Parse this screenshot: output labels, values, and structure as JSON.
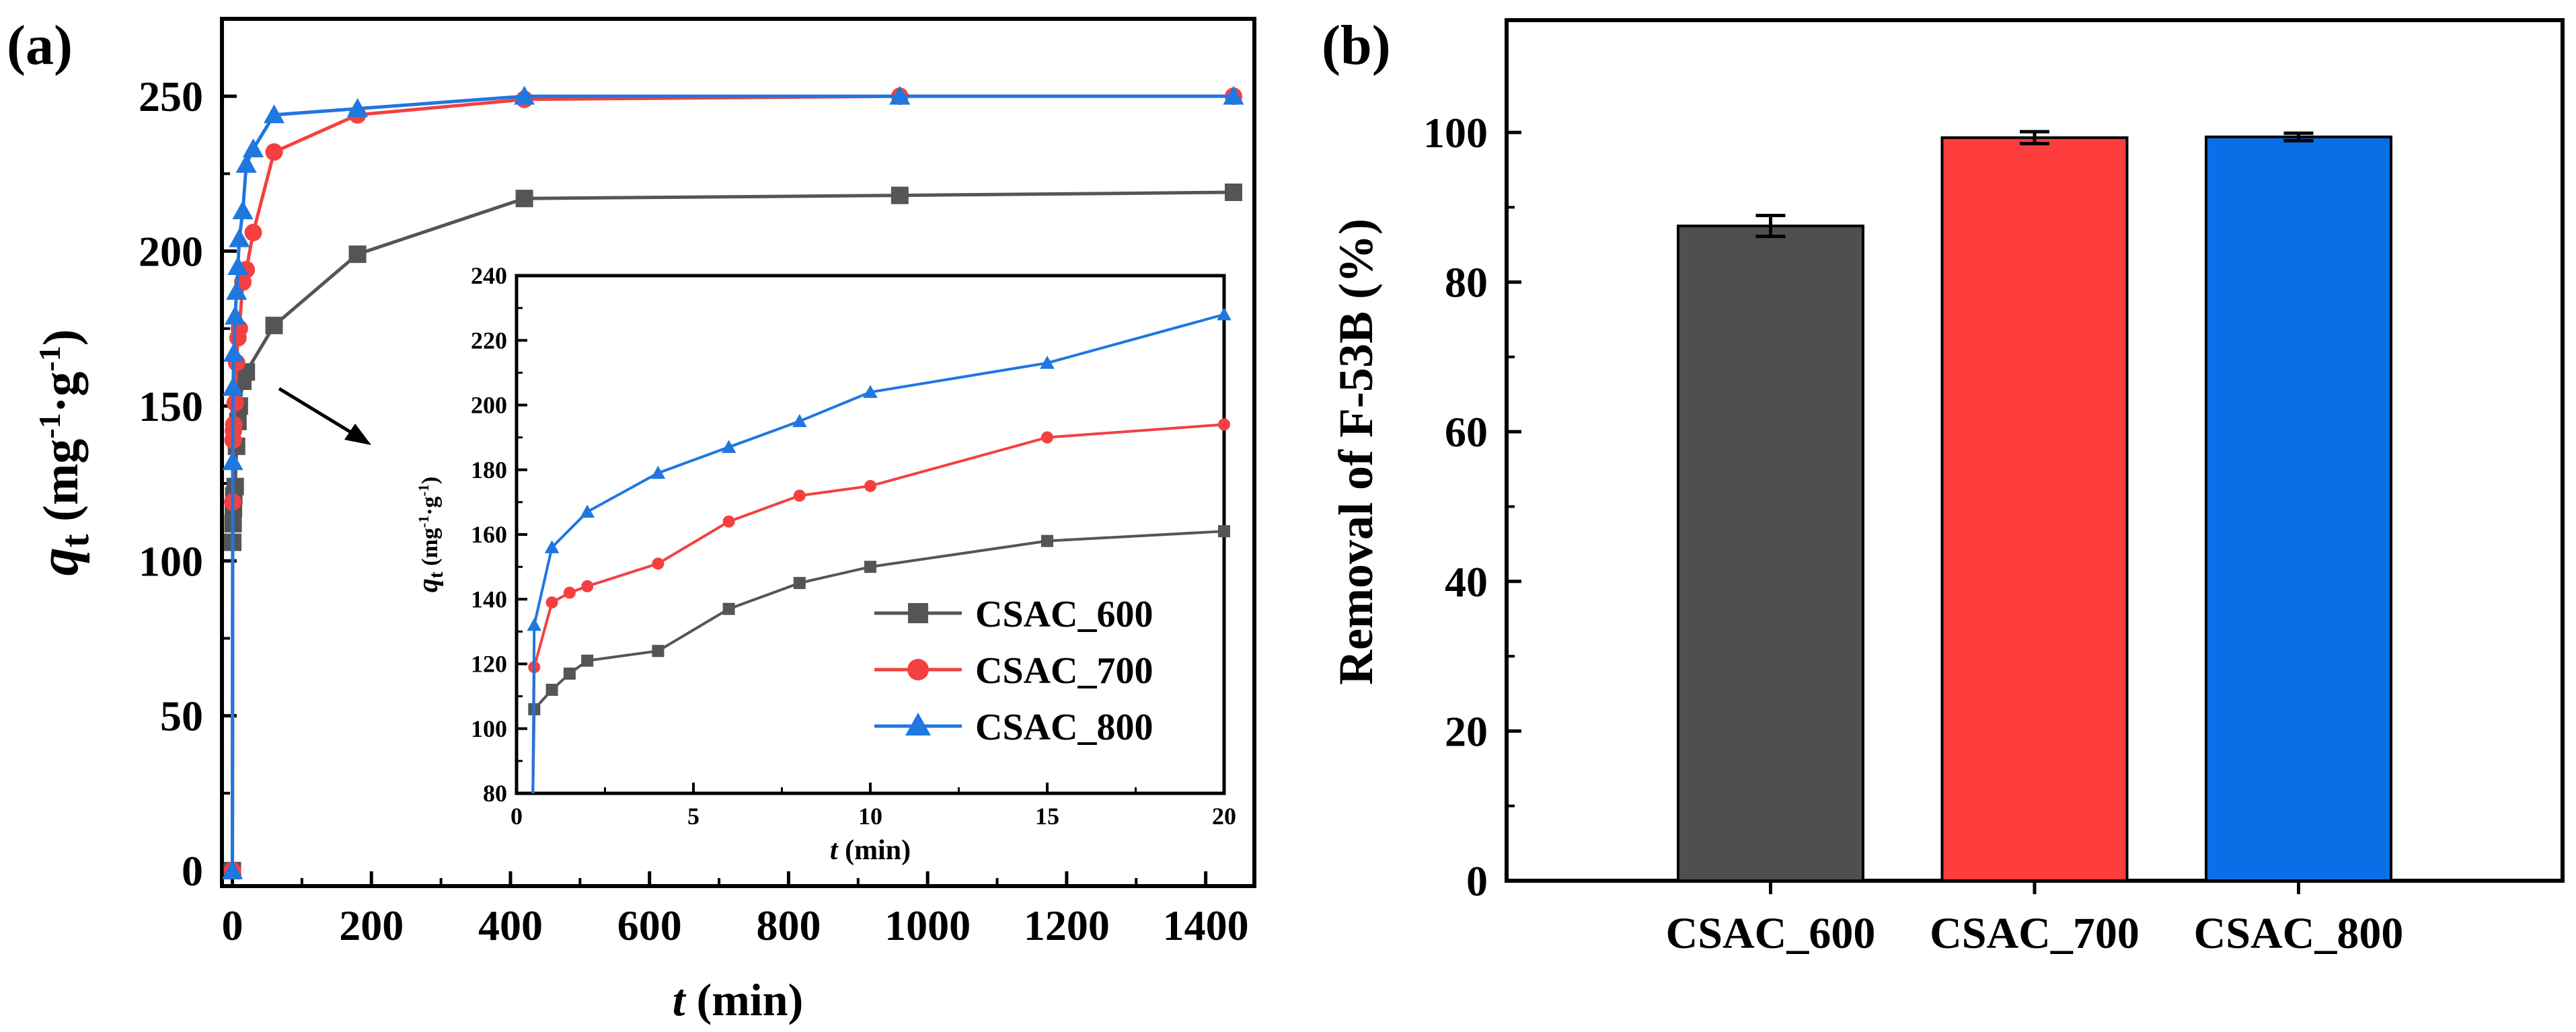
{
  "chart_data": [
    {
      "panel_label": "(a)",
      "type": "line",
      "title": "",
      "xlabel_italic": "t",
      "xlabel_rest": " (min)",
      "ylabel_italic": "q",
      "ylabel_sub": "t",
      "ylabel_rest": " (mg",
      "ylabel_sup1": "-1",
      "ylabel_mid": "·g",
      "ylabel_sup2": "-1",
      "ylabel_end": ")",
      "xlim": [
        -15,
        1470
      ],
      "ylim": [
        -5,
        275
      ],
      "xticks": [
        0,
        200,
        400,
        600,
        800,
        1000,
        1200,
        1400
      ],
      "yticks": [
        0,
        50,
        100,
        150,
        200,
        250
      ],
      "legend_position": "inside inset, lower-right",
      "series": [
        {
          "name": "CSAC_600",
          "color": "#555555",
          "marker": "square",
          "x": [
            0,
            0.5,
            1,
            1.5,
            2,
            4,
            6,
            8,
            10,
            15,
            20,
            60,
            180,
            420,
            960,
            1440
          ],
          "y": [
            0,
            106,
            112,
            117,
            121,
            124,
            137,
            145,
            150,
            158,
            161,
            176,
            199,
            217,
            218,
            219
          ]
        },
        {
          "name": "CSAC_700",
          "color": "#f44040",
          "marker": "circle",
          "x": [
            0,
            0.5,
            1,
            1.5,
            2,
            4,
            6,
            8,
            10,
            15,
            20,
            30,
            60,
            180,
            420,
            960,
            1440
          ],
          "y": [
            0,
            119,
            139,
            142,
            144,
            151,
            164,
            172,
            175,
            190,
            194,
            206,
            232,
            244,
            249,
            250,
            250
          ]
        },
        {
          "name": "CSAC_800",
          "color": "#1f77e0",
          "marker": "triangle",
          "x": [
            0,
            0.5,
            1,
            2,
            4,
            6,
            8,
            10,
            15,
            20,
            30,
            60,
            180,
            420,
            960,
            1440
          ],
          "y": [
            0,
            132,
            156,
            167,
            179,
            187,
            195,
            204,
            213,
            228,
            233,
            244,
            246,
            250,
            250,
            250
          ]
        }
      ],
      "inset": {
        "xlabel_italic": "t",
        "xlabel_rest": " (min)",
        "ylabel_italic": "q",
        "ylabel_sub": "t",
        "ylabel_rest": " (mg",
        "ylabel_sup1": "-1",
        "ylabel_mid": "·g",
        "ylabel_sup2": "-1",
        "ylabel_end": ")",
        "xlim": [
          0,
          20
        ],
        "ylim": [
          80,
          240
        ],
        "xticks": [
          0,
          5,
          10,
          15,
          20
        ],
        "yticks": [
          80,
          100,
          120,
          140,
          160,
          180,
          200,
          220,
          240
        ],
        "annotation": "arrow from main curves (early time) to inset"
      }
    },
    {
      "panel_label": "(b)",
      "type": "bar",
      "title": "",
      "ylabel": "Removal of F-53B (%)",
      "ylim": [
        0,
        115
      ],
      "yticks": [
        0,
        20,
        40,
        60,
        80,
        100
      ],
      "categories": [
        "CSAC_600",
        "CSAC_700",
        "CSAC_800"
      ],
      "values": [
        87.5,
        99.3,
        99.4
      ],
      "errors": [
        1.4,
        0.8,
        0.5
      ],
      "colors": [
        "#4f4f4f",
        "#ff3d3d",
        "#0a6ee6"
      ]
    }
  ]
}
